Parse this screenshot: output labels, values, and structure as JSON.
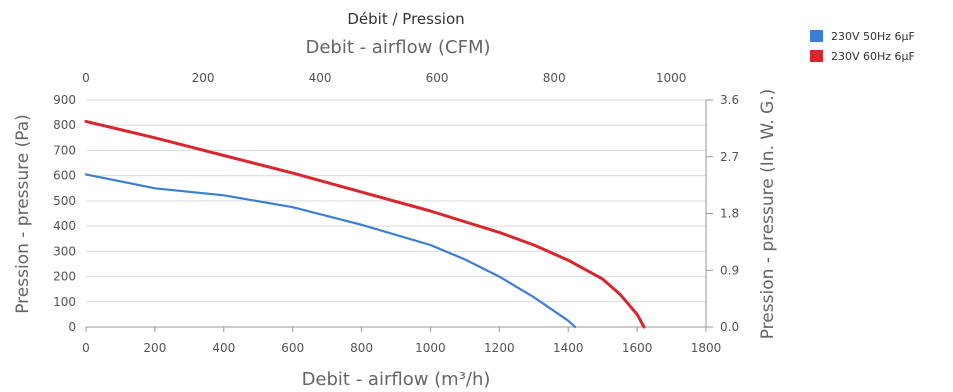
{
  "chart_data": {
    "type": "line",
    "title": "Débit / Pression",
    "top_axis": {
      "label": "Debit - airflow (CFM)",
      "range": [
        0,
        1059.5
      ],
      "ticks": [
        "0",
        "200",
        "400",
        "600",
        "800",
        "1000"
      ]
    },
    "xlabel": "Debit - airflow (m³/h)",
    "xlim": [
      0,
      1800
    ],
    "x_ticks": [
      "0",
      "200",
      "400",
      "600",
      "800",
      "1000",
      "1200",
      "1400",
      "1600",
      "1800"
    ],
    "ylabel": "Pression - pressure (Pa)",
    "ylim": [
      0,
      900
    ],
    "y_ticks": [
      "0",
      "100",
      "200",
      "300",
      "400",
      "500",
      "600",
      "700",
      "800",
      "900"
    ],
    "y2label": "Pression - pressure (In. W. G.)",
    "y2lim": [
      0,
      3.6
    ],
    "y2_ticks": [
      "0.0",
      "0.9",
      "1.8",
      "2.7",
      "3.6"
    ],
    "grid": true,
    "legend_position": "top-right",
    "series": [
      {
        "name": "230V 50Hz 6µF",
        "color": "#3a7fd5",
        "x": [
          0,
          200,
          400,
          600,
          800,
          1000,
          1100,
          1200,
          1300,
          1400,
          1420
        ],
        "y": [
          605,
          550,
          522,
          475,
          405,
          325,
          268,
          200,
          118,
          25,
          0
        ]
      },
      {
        "name": "230V 60Hz 6µF",
        "color": "#d9262c",
        "x": [
          0,
          200,
          400,
          600,
          800,
          1000,
          1200,
          1300,
          1400,
          1500,
          1550,
          1600,
          1620
        ],
        "y": [
          815,
          750,
          680,
          610,
          535,
          460,
          375,
          325,
          265,
          190,
          130,
          50,
          0
        ]
      }
    ]
  }
}
